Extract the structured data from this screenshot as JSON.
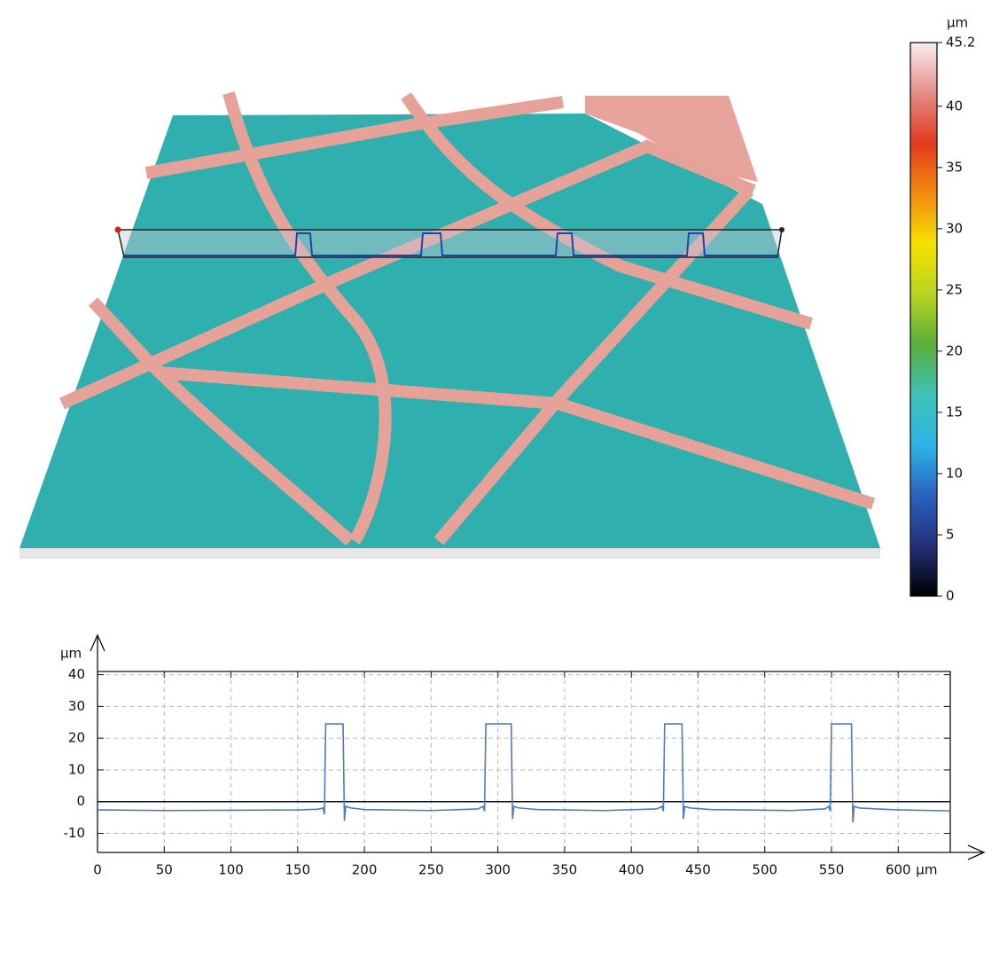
{
  "chart_data": [
    {
      "type": "colorbar",
      "unit": "µm",
      "ylim": [
        0,
        45.2
      ],
      "yticks": [
        0,
        5,
        10,
        15,
        20,
        25,
        30,
        35,
        40,
        45.2
      ],
      "colors": [
        "#000000",
        "#23307a",
        "#2a63c0",
        "#2fb4e6",
        "#3fc2b8",
        "#5aae3a",
        "#b8d420",
        "#f6e200",
        "#f28a10",
        "#e23a1e",
        "#e58c88",
        "#f9eeee"
      ]
    },
    {
      "type": "line",
      "x_unit": "µm",
      "y_unit": "µm",
      "xlim": [
        0,
        639
      ],
      "ylim": [
        -16,
        41
      ],
      "xticks": [
        0,
        50,
        100,
        150,
        200,
        250,
        300,
        350,
        400,
        450,
        500,
        550,
        600
      ],
      "yticks": [
        -10,
        0,
        10,
        20,
        30,
        40
      ],
      "grid": true,
      "series": [
        {
          "color": "#4a7cc4",
          "x": [
            0,
            50,
            100,
            150,
            165,
            169,
            170,
            171,
            184,
            185,
            186,
            190,
            200,
            250,
            285,
            289,
            290,
            291,
            310,
            311,
            312,
            316,
            330,
            380,
            419,
            423,
            424,
            425,
            438,
            439,
            440,
            444,
            460,
            520,
            545,
            548,
            549,
            550,
            565,
            566,
            567,
            571,
            600,
            639
          ],
          "values": [
            -2.6,
            -2.8,
            -2.7,
            -2.6,
            -2.4,
            -2,
            -4,
            24.5,
            24.5,
            -6,
            -1.5,
            -2,
            -2.5,
            -2.8,
            -2.3,
            -1.5,
            -3,
            24.5,
            24.5,
            -5.5,
            -1.5,
            -2,
            -2.5,
            -2.8,
            -2.3,
            -1.5,
            -3,
            24.5,
            24.5,
            -5.5,
            -1.5,
            -2,
            -2.5,
            -2.8,
            -2.3,
            -1.5,
            -3,
            24.5,
            24.5,
            -6.5,
            -1.5,
            -2,
            -2.6,
            -2.9
          ]
        }
      ]
    }
  ]
}
